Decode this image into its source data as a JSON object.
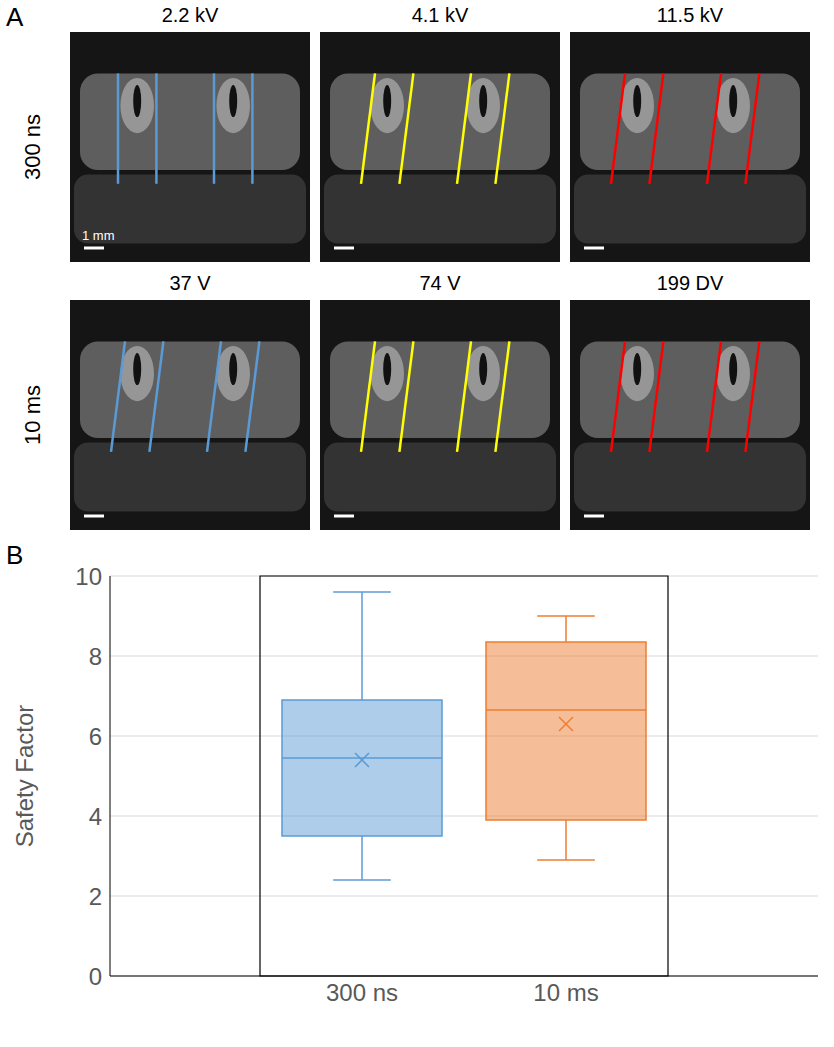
{
  "panel_a": {
    "label": "A",
    "rows": [
      {
        "label": "300 ns",
        "titles": [
          "2.2 kV",
          "4.1 kV",
          "11.5 kV"
        ]
      },
      {
        "label": "10 ms",
        "titles": [
          "37 V",
          "74 V",
          "199 DV"
        ]
      }
    ],
    "scale_bar": "1 mm"
  },
  "panel_b_label": "B",
  "chart_data": {
    "type": "box",
    "y_label": "Safety Factor",
    "categories": [
      "300 ns",
      "10 ms"
    ],
    "colors": [
      "#5b9bd5",
      "#ed7d31"
    ],
    "min": [
      2.4,
      2.9
    ],
    "q1": [
      3.5,
      3.9
    ],
    "median": [
      5.45,
      6.65
    ],
    "q3": [
      6.9,
      8.35
    ],
    "max": [
      9.6,
      9.0
    ],
    "mean": [
      5.4,
      6.3
    ],
    "ylim": [
      0,
      10
    ],
    "yticks": [
      0,
      2,
      4,
      6,
      8,
      10
    ],
    "grid": true
  }
}
